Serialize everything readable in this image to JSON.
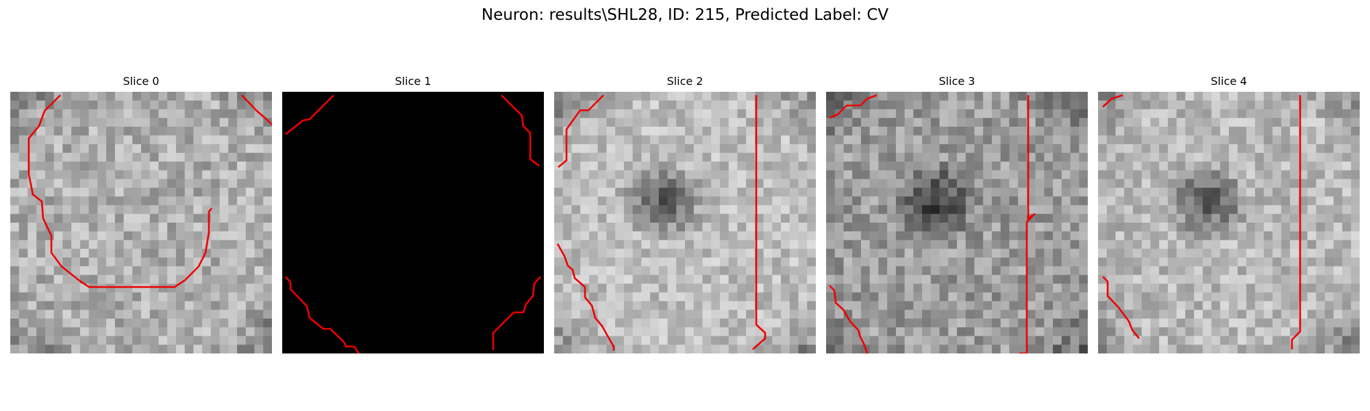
{
  "figure": {
    "suptitle": "Neuron: results\\SHL28, ID: 215, Predicted Label: CV"
  },
  "slices": [
    {
      "title": "Slice 0",
      "mask_color": "#ee0000",
      "mean_tone": "light-gray",
      "dark_center": false
    },
    {
      "title": "Slice 1",
      "mask_color": "#ee0000",
      "mean_tone": "black",
      "dark_center": false
    },
    {
      "title": "Slice 2",
      "mask_color": "#ee0000",
      "mean_tone": "light-gray",
      "dark_center": true
    },
    {
      "title": "Slice 3",
      "mask_color": "#ee0000",
      "mean_tone": "mid-gray",
      "dark_center": true
    },
    {
      "title": "Slice 4",
      "mask_color": "#ee0000",
      "mean_tone": "light-gray",
      "dark_center": true
    }
  ],
  "colors": {
    "background": "#ffffff",
    "contour": "#ee0000"
  }
}
